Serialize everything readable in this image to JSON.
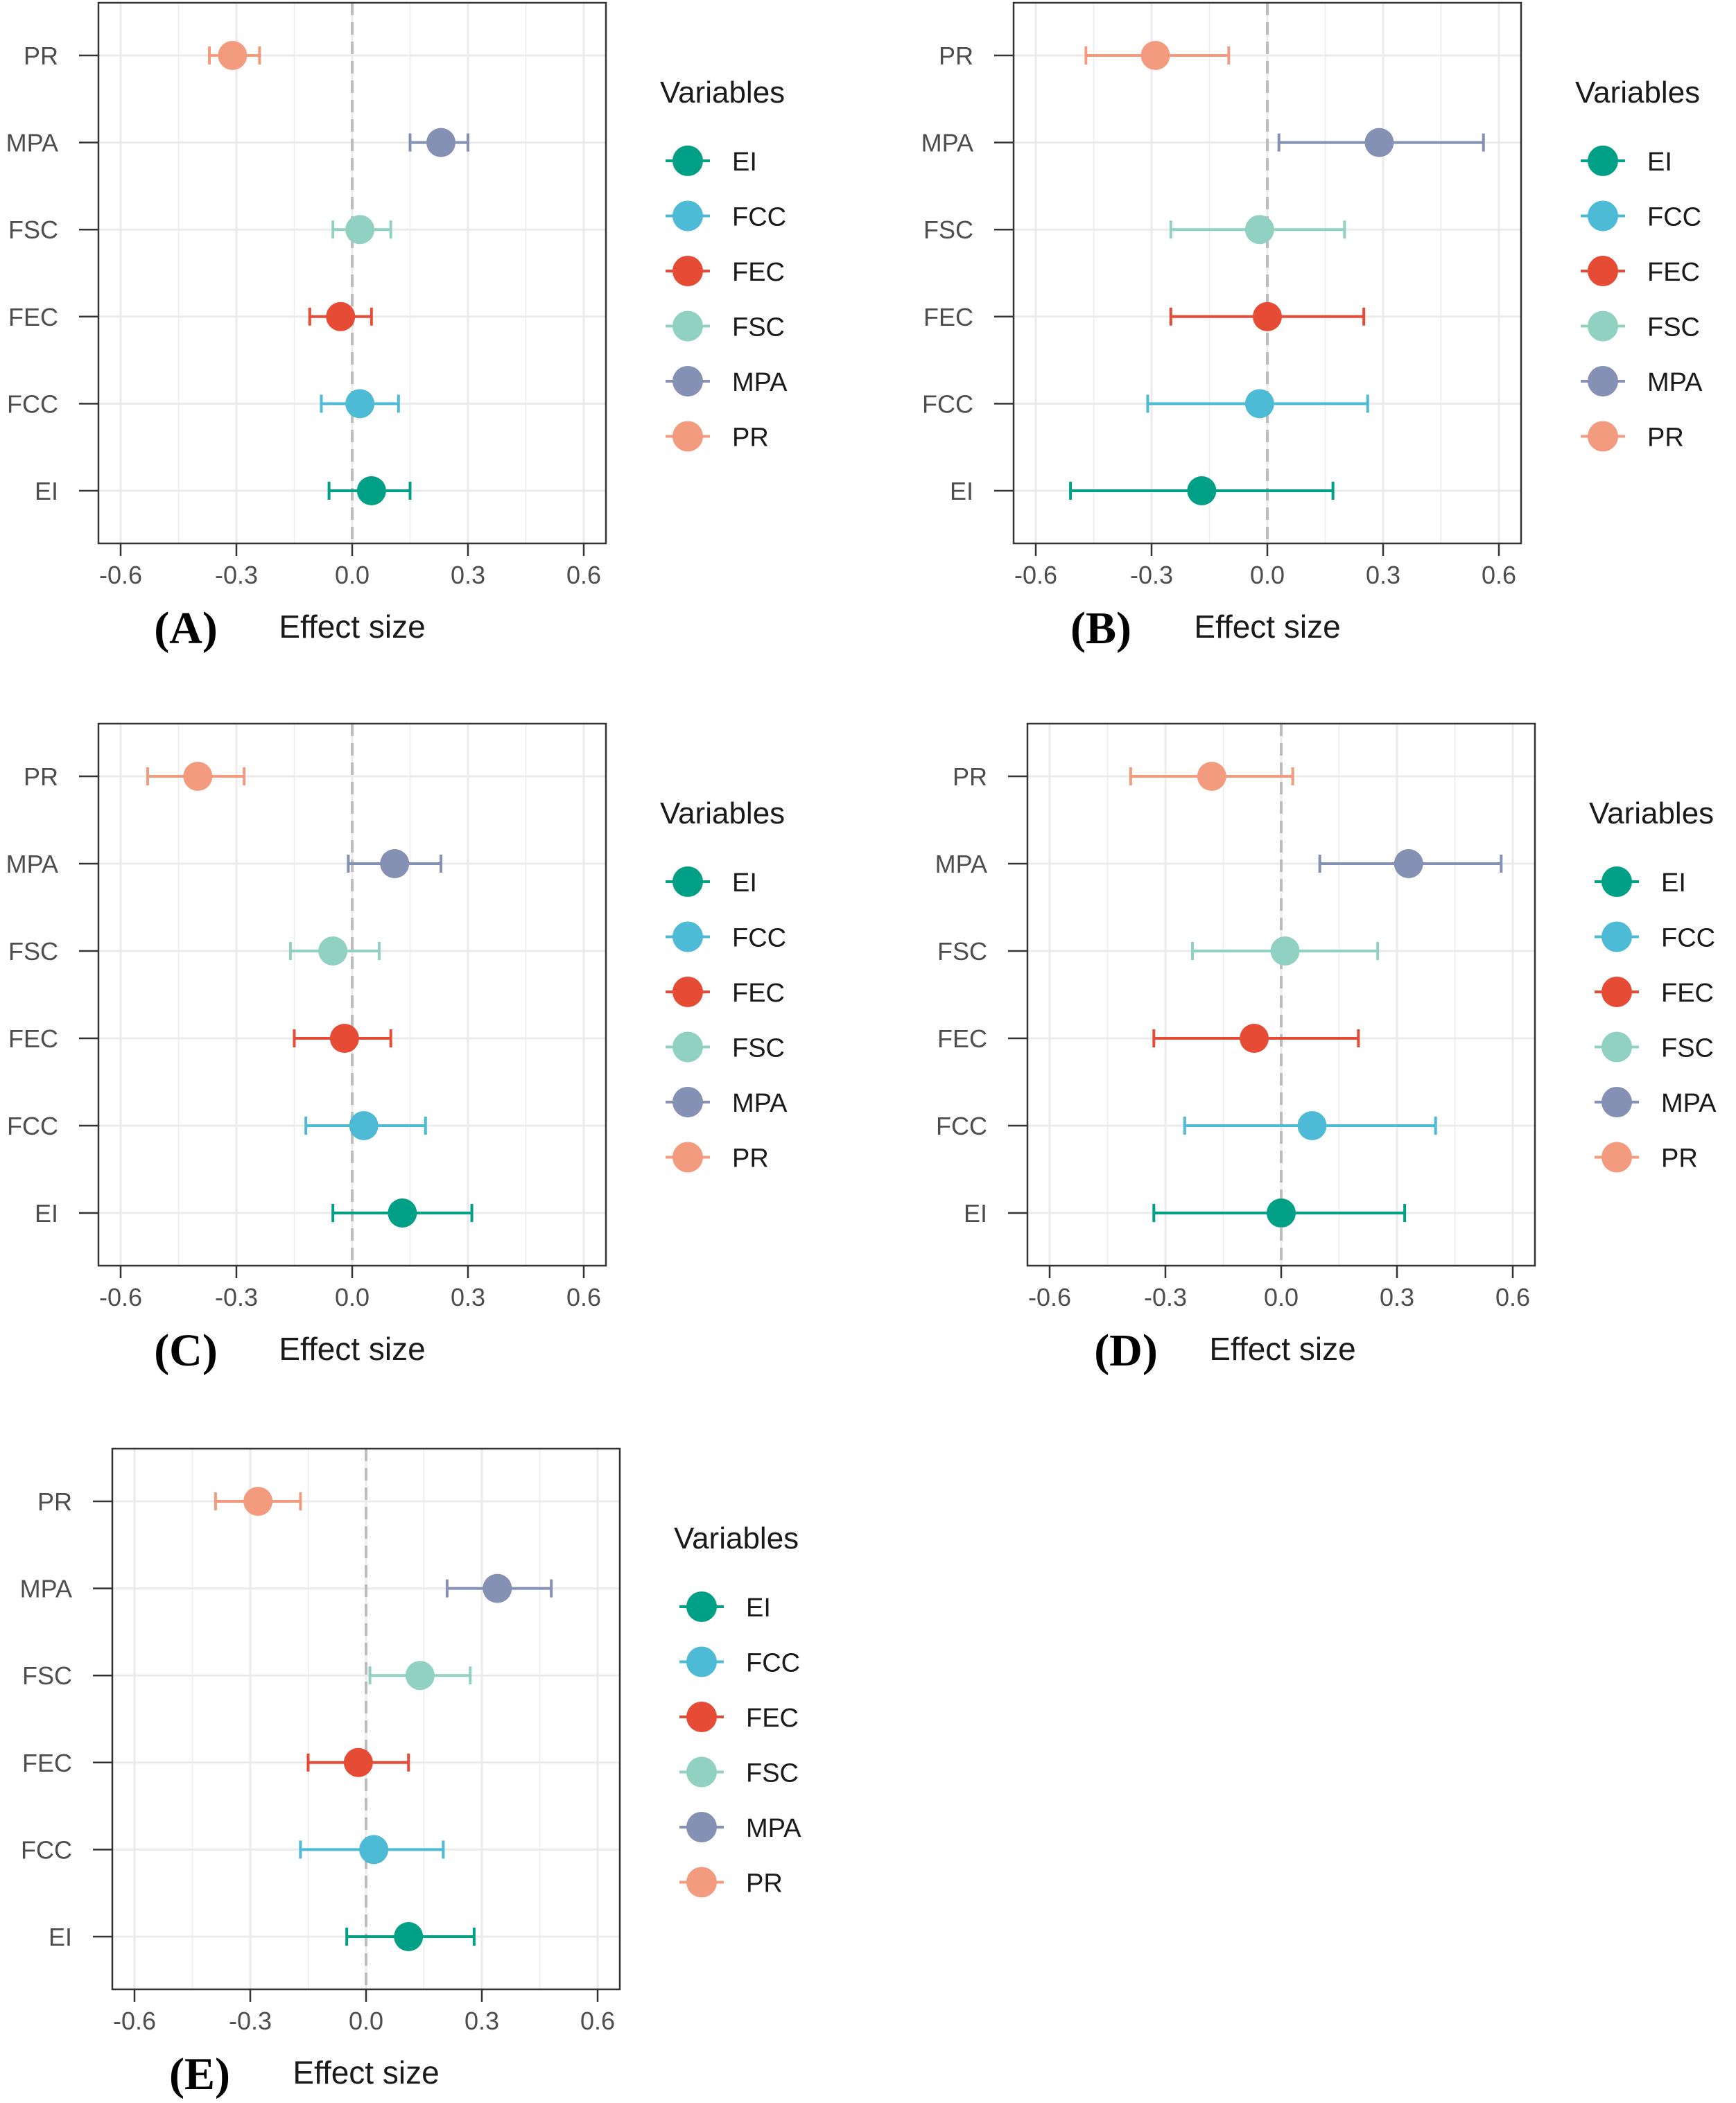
{
  "colors": {
    "EI": "#00A087",
    "FCC": "#4DBBD5",
    "FEC": "#E64B35",
    "FSC": "#91D1C2",
    "MPA": "#8491B4",
    "PR": "#F39B7F",
    "zero_line": "#bdbdbd",
    "grid": "#ebebeb",
    "frame": "#333333"
  },
  "legend": {
    "title": "Variables",
    "items": [
      "EI",
      "FCC",
      "FEC",
      "FSC",
      "MPA",
      "PR"
    ]
  },
  "chart_data": [
    {
      "type": "forest",
      "panel": "(A)",
      "xlabel": "Effect size",
      "ylabel": "",
      "xlim": [
        -0.6,
        0.6
      ],
      "xticks": [
        "-0.6",
        "-0.3",
        "0.0",
        "0.3",
        "0.6"
      ],
      "categories": [
        "PR",
        "MPA",
        "FSC",
        "FEC",
        "FCC",
        "EI"
      ],
      "points": [
        {
          "name": "PR",
          "est": -0.31,
          "lo": -0.37,
          "hi": -0.24
        },
        {
          "name": "MPA",
          "est": 0.23,
          "lo": 0.15,
          "hi": 0.3
        },
        {
          "name": "FSC",
          "est": 0.02,
          "lo": -0.05,
          "hi": 0.1
        },
        {
          "name": "FEC",
          "est": -0.03,
          "lo": -0.11,
          "hi": 0.05
        },
        {
          "name": "FCC",
          "est": 0.02,
          "lo": -0.08,
          "hi": 0.12
        },
        {
          "name": "EI",
          "est": 0.05,
          "lo": -0.06,
          "hi": 0.15
        }
      ]
    },
    {
      "type": "forest",
      "panel": "(B)",
      "xlabel": "Effect size",
      "ylabel": "",
      "xlim": [
        -0.6,
        0.6
      ],
      "xticks": [
        "-0.6",
        "-0.3",
        "0.0",
        "0.3",
        "0.6"
      ],
      "categories": [
        "PR",
        "MPA",
        "FSC",
        "FEC",
        "FCC",
        "EI"
      ],
      "points": [
        {
          "name": "PR",
          "est": -0.29,
          "lo": -0.47,
          "hi": -0.1
        },
        {
          "name": "MPA",
          "est": 0.29,
          "lo": 0.03,
          "hi": 0.56
        },
        {
          "name": "FSC",
          "est": -0.02,
          "lo": -0.25,
          "hi": 0.2
        },
        {
          "name": "FEC",
          "est": 0.0,
          "lo": -0.25,
          "hi": 0.25
        },
        {
          "name": "FCC",
          "est": -0.02,
          "lo": -0.31,
          "hi": 0.26
        },
        {
          "name": "EI",
          "est": -0.17,
          "lo": -0.51,
          "hi": 0.17
        }
      ]
    },
    {
      "type": "forest",
      "panel": "(C)",
      "xlabel": "Effect size",
      "ylabel": "",
      "xlim": [
        -0.6,
        0.6
      ],
      "xticks": [
        "-0.6",
        "-0.3",
        "0.0",
        "0.3",
        "0.6"
      ],
      "categories": [
        "PR",
        "MPA",
        "FSC",
        "FEC",
        "FCC",
        "EI"
      ],
      "points": [
        {
          "name": "PR",
          "est": -0.4,
          "lo": -0.53,
          "hi": -0.28
        },
        {
          "name": "MPA",
          "est": 0.11,
          "lo": -0.01,
          "hi": 0.23
        },
        {
          "name": "FSC",
          "est": -0.05,
          "lo": -0.16,
          "hi": 0.07
        },
        {
          "name": "FEC",
          "est": -0.02,
          "lo": -0.15,
          "hi": 0.1
        },
        {
          "name": "FCC",
          "est": 0.03,
          "lo": -0.12,
          "hi": 0.19
        },
        {
          "name": "EI",
          "est": 0.13,
          "lo": -0.05,
          "hi": 0.31
        }
      ]
    },
    {
      "type": "forest",
      "panel": "(D)",
      "xlabel": "Effect size",
      "ylabel": "",
      "xlim": [
        -0.6,
        0.6
      ],
      "xticks": [
        "-0.6",
        "-0.3",
        "0.0",
        "0.3",
        "0.6"
      ],
      "categories": [
        "PR",
        "MPA",
        "FSC",
        "FEC",
        "FCC",
        "EI"
      ],
      "points": [
        {
          "name": "PR",
          "est": -0.18,
          "lo": -0.39,
          "hi": 0.03
        },
        {
          "name": "MPA",
          "est": 0.33,
          "lo": 0.1,
          "hi": 0.57
        },
        {
          "name": "FSC",
          "est": 0.01,
          "lo": -0.23,
          "hi": 0.25
        },
        {
          "name": "FEC",
          "est": -0.07,
          "lo": -0.33,
          "hi": 0.2
        },
        {
          "name": "FCC",
          "est": 0.08,
          "lo": -0.25,
          "hi": 0.4
        },
        {
          "name": "EI",
          "est": 0.0,
          "lo": -0.33,
          "hi": 0.32
        }
      ]
    },
    {
      "type": "forest",
      "panel": "(E)",
      "xlabel": "Effect size",
      "ylabel": "",
      "xlim": [
        -0.6,
        0.6
      ],
      "xticks": [
        "-0.6",
        "-0.3",
        "0.0",
        "0.3",
        "0.6"
      ],
      "categories": [
        "PR",
        "MPA",
        "FSC",
        "FEC",
        "FCC",
        "EI"
      ],
      "points": [
        {
          "name": "PR",
          "est": -0.28,
          "lo": -0.39,
          "hi": -0.17
        },
        {
          "name": "MPA",
          "est": 0.34,
          "lo": 0.21,
          "hi": 0.48
        },
        {
          "name": "FSC",
          "est": 0.14,
          "lo": 0.01,
          "hi": 0.27
        },
        {
          "name": "FEC",
          "est": -0.02,
          "lo": -0.15,
          "hi": 0.11
        },
        {
          "name": "FCC",
          "est": 0.02,
          "lo": -0.17,
          "hi": 0.2
        },
        {
          "name": "EI",
          "est": 0.11,
          "lo": -0.05,
          "hi": 0.28
        }
      ]
    }
  ]
}
